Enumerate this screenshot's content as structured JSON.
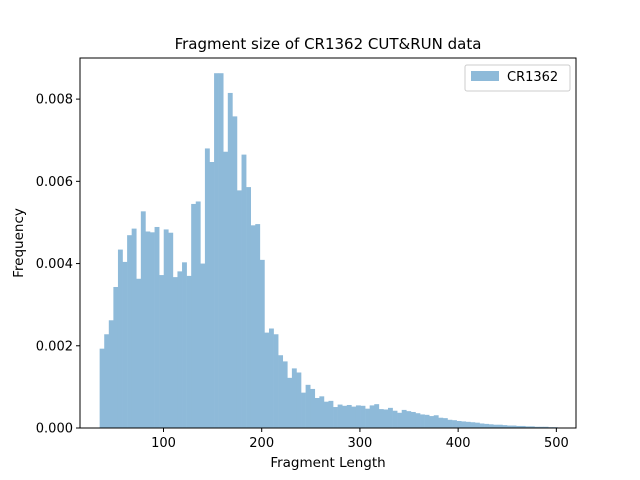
{
  "chart_data": {
    "type": "bar",
    "title": "Fragment size of CR1362 CUT&RUN data",
    "xlabel": "Fragment Length",
    "ylabel": "Frequency",
    "xlim": [
      15,
      520
    ],
    "ylim": [
      0,
      0.009
    ],
    "xticks": [
      100,
      200,
      300,
      400,
      500
    ],
    "xtick_labels": [
      "100",
      "200",
      "300",
      "400",
      "500"
    ],
    "yticks": [
      0,
      0.002,
      0.004,
      0.006,
      0.008
    ],
    "ytick_labels": [
      "0.000",
      "0.002",
      "0.004",
      "0.006",
      "0.008"
    ],
    "grid": false,
    "legend": {
      "placement": "top-right",
      "entries": [
        "CR1362"
      ]
    },
    "series": [
      {
        "name": "CR1362",
        "color": "#8ebad9",
        "bin_width": 4.66,
        "bin_start": 35,
        "values": [
          0.00193,
          0.00228,
          0.00262,
          0.00343,
          0.00434,
          0.00404,
          0.00469,
          0.00485,
          0.00363,
          0.00527,
          0.00478,
          0.00476,
          0.00489,
          0.00372,
          0.00483,
          0.00475,
          0.00367,
          0.00381,
          0.00403,
          0.0037,
          0.00545,
          0.00551,
          0.004,
          0.0068,
          0.00647,
          0.00863,
          0.00863,
          0.00672,
          0.00815,
          0.00758,
          0.00578,
          0.00665,
          0.00586,
          0.00493,
          0.00496,
          0.00409,
          0.00232,
          0.00242,
          0.00228,
          0.00177,
          0.00162,
          0.00122,
          0.00145,
          0.00135,
          0.00086,
          0.00105,
          0.00095,
          0.00073,
          0.00077,
          0.00064,
          0.00066,
          0.00051,
          0.00057,
          0.00054,
          0.00056,
          0.00052,
          0.00055,
          0.00054,
          0.00047,
          0.00055,
          0.00058,
          0.00046,
          0.00045,
          0.00049,
          0.00042,
          0.00037,
          0.00044,
          0.00041,
          0.00039,
          0.00036,
          0.00033,
          0.00032,
          0.00029,
          0.00031,
          0.00025,
          0.00024,
          0.0002,
          0.00019,
          0.00017,
          0.00016,
          0.00015,
          0.00014,
          0.00013,
          0.00011,
          0.0001,
          9e-05,
          8e-05,
          8e-05,
          7e-05,
          6e-05,
          6e-05,
          5e-05,
          5e-05,
          4e-05,
          4e-05,
          3e-05,
          3e-05,
          3e-05,
          2e-05,
          2e-05
        ]
      }
    ]
  }
}
